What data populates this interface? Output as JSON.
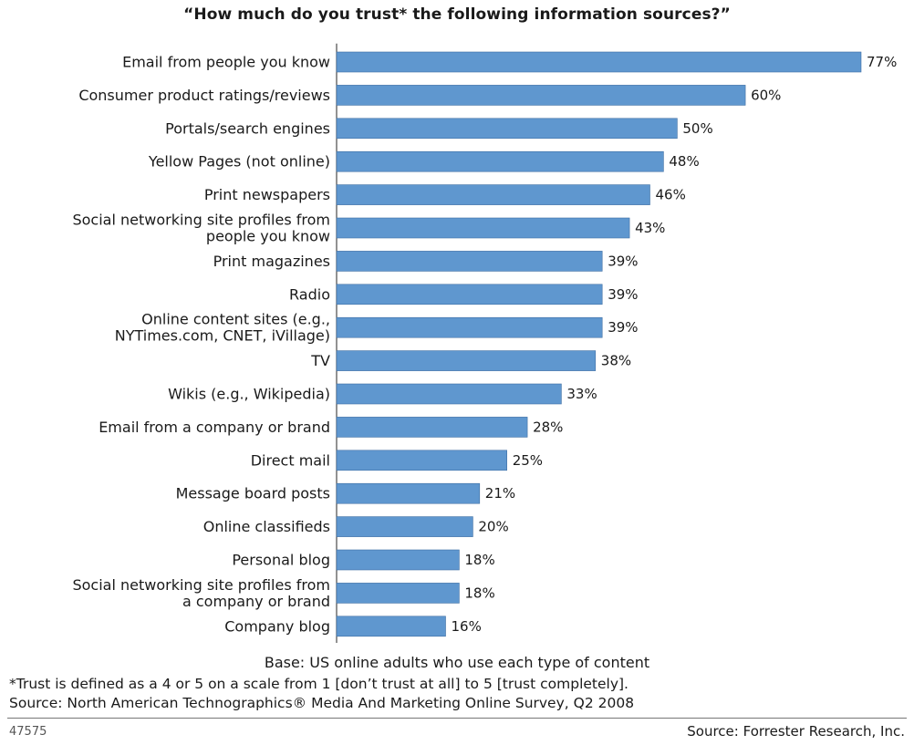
{
  "chart_data": {
    "type": "bar",
    "orientation": "horizontal",
    "title": "“How much do you trust* the following information sources?”",
    "categories": [
      [
        "Email from people you know"
      ],
      [
        "Consumer product ratings/reviews"
      ],
      [
        "Portals/search engines"
      ],
      [
        "Yellow Pages (not online)"
      ],
      [
        "Print newspapers"
      ],
      [
        "Social networking site profiles from",
        "people you know"
      ],
      [
        "Print magazines"
      ],
      [
        "Radio"
      ],
      [
        "Online content sites (e.g.,",
        "NYTimes.com, CNET, iVillage)"
      ],
      [
        "TV"
      ],
      [
        "Wikis (e.g., Wikipedia)"
      ],
      [
        "Email from a company or brand"
      ],
      [
        "Direct mail"
      ],
      [
        "Message board posts"
      ],
      [
        "Online classifieds"
      ],
      [
        "Personal blog"
      ],
      [
        "Social networking site profiles from",
        "a company or brand"
      ],
      [
        "Company blog"
      ]
    ],
    "values": [
      77,
      60,
      50,
      48,
      46,
      43,
      39,
      39,
      39,
      38,
      33,
      28,
      25,
      21,
      20,
      18,
      18,
      16
    ],
    "value_suffix": "%",
    "bar_color": "#5f97cf",
    "xlim": [
      0,
      77
    ],
    "grid": false,
    "legend": "none"
  },
  "notes": {
    "base": "Base: US online adults who use each type of content",
    "trust_definition": "*Trust is defined as a 4 or 5 on a scale from 1 [don’t trust at all] to 5 [trust completely].",
    "survey_source": "Source: North American Technographics® Media And Marketing Online Survey, Q2 2008"
  },
  "footer": {
    "chart_id": "47575",
    "source": "Source: Forrester Research, Inc."
  }
}
